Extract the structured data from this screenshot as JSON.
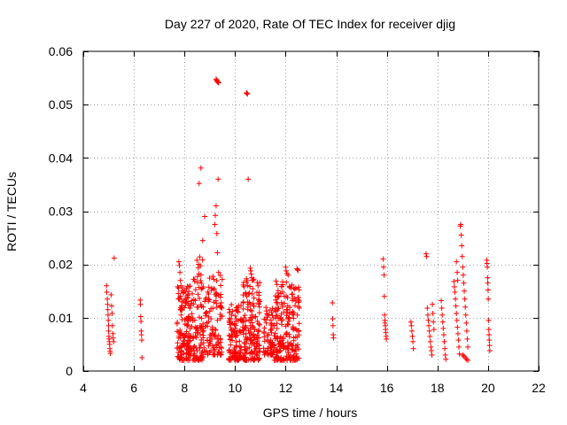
{
  "chart_data": {
    "type": "scatter",
    "title": "Day 227 of 2020, Rate Of TEC Index for receiver djig",
    "xlabel": "GPS time / hours",
    "ylabel": "ROTI / TECUs",
    "xlim": [
      4,
      22
    ],
    "ylim": [
      0,
      0.06
    ],
    "xticks": [
      4,
      6,
      8,
      10,
      12,
      14,
      16,
      18,
      20,
      22
    ],
    "xtick_labels": [
      "4",
      "6",
      "8",
      "10",
      "12",
      "14",
      "16",
      "18",
      "20",
      "22"
    ],
    "yticks": [
      0,
      0.01,
      0.02,
      0.03,
      0.04,
      0.05,
      0.06
    ],
    "ytick_labels": [
      "0",
      "0.01",
      "0.02",
      "0.03",
      "0.04",
      "0.05",
      "0.06"
    ],
    "grid": true,
    "marker": "plus",
    "color": "#ff0000",
    "series": [
      {
        "name": "ROTI",
        "points": [
          [
            4.92,
            0.016
          ],
          [
            4.93,
            0.0148
          ],
          [
            4.95,
            0.0135
          ],
          [
            4.96,
            0.0125
          ],
          [
            4.97,
            0.0115
          ],
          [
            4.98,
            0.0105
          ],
          [
            4.99,
            0.0095
          ],
          [
            5.0,
            0.0085
          ],
          [
            5.0,
            0.0075
          ],
          [
            5.01,
            0.0065
          ],
          [
            5.02,
            0.006
          ],
          [
            5.03,
            0.0055
          ],
          [
            5.04,
            0.005
          ],
          [
            5.05,
            0.0042
          ],
          [
            5.06,
            0.0037
          ],
          [
            5.07,
            0.0033
          ],
          [
            5.1,
            0.0143
          ],
          [
            5.12,
            0.0122
          ],
          [
            5.14,
            0.0108
          ],
          [
            5.15,
            0.0085
          ],
          [
            5.17,
            0.007
          ],
          [
            5.18,
            0.0062
          ],
          [
            5.2,
            0.0055
          ],
          [
            5.22,
            0.0212
          ],
          [
            6.25,
            0.0133
          ],
          [
            6.26,
            0.0125
          ],
          [
            6.27,
            0.0102
          ],
          [
            6.28,
            0.0093
          ],
          [
            6.29,
            0.0075
          ],
          [
            6.3,
            0.0068
          ],
          [
            6.31,
            0.0058
          ],
          [
            6.32,
            0.0025
          ],
          [
            7.78,
            0.0205
          ],
          [
            7.8,
            0.0198
          ],
          [
            7.82,
            0.0185
          ],
          [
            7.84,
            0.017
          ],
          [
            7.86,
            0.016
          ],
          [
            8.58,
            0.0352
          ],
          [
            8.65,
            0.0381
          ],
          [
            8.72,
            0.0245
          ],
          [
            8.8,
            0.029
          ],
          [
            8.95,
            0.0135
          ],
          [
            9.0,
            0.0112
          ],
          [
            9.05,
            0.0098
          ],
          [
            9.1,
            0.0082
          ],
          [
            9.15,
            0.007
          ],
          [
            9.2,
            0.0275
          ],
          [
            9.22,
            0.0292
          ],
          [
            9.25,
            0.031
          ],
          [
            9.28,
            0.0258
          ],
          [
            9.3,
            0.0222
          ],
          [
            9.33,
            0.036
          ],
          [
            9.35,
            0.0185
          ],
          [
            9.25,
            0.0548
          ],
          [
            9.27,
            0.0546
          ],
          [
            9.29,
            0.0544
          ],
          [
            9.31,
            0.0543
          ],
          [
            9.33,
            0.0542
          ],
          [
            9.35,
            0.0541
          ],
          [
            10.45,
            0.0522
          ],
          [
            10.47,
            0.0521
          ],
          [
            10.49,
            0.052
          ],
          [
            10.52,
            0.036
          ],
          [
            10.6,
            0.0193
          ],
          [
            10.62,
            0.0188
          ],
          [
            10.64,
            0.0182
          ],
          [
            10.66,
            0.0175
          ],
          [
            10.68,
            0.017
          ],
          [
            12.0,
            0.0195
          ],
          [
            12.02,
            0.0188
          ],
          [
            12.05,
            0.0183
          ],
          [
            12.1,
            0.018
          ],
          [
            12.45,
            0.0192
          ],
          [
            12.47,
            0.019
          ],
          [
            12.49,
            0.0189
          ],
          [
            13.85,
            0.0128
          ],
          [
            13.86,
            0.0098
          ],
          [
            13.87,
            0.0085
          ],
          [
            13.88,
            0.0068
          ],
          [
            13.89,
            0.0062
          ],
          [
            15.85,
            0.021
          ],
          [
            15.87,
            0.0195
          ],
          [
            15.89,
            0.018
          ],
          [
            15.9,
            0.014
          ],
          [
            15.91,
            0.0105
          ],
          [
            15.92,
            0.0095
          ],
          [
            15.93,
            0.009
          ],
          [
            15.94,
            0.0085
          ],
          [
            15.95,
            0.0078
          ],
          [
            15.96,
            0.0072
          ],
          [
            15.97,
            0.0065
          ],
          [
            15.98,
            0.006
          ],
          [
            16.95,
            0.0092
          ],
          [
            16.97,
            0.0085
          ],
          [
            16.99,
            0.0075
          ],
          [
            17.01,
            0.0065
          ],
          [
            17.03,
            0.0055
          ],
          [
            17.05,
            0.0042
          ],
          [
            17.55,
            0.022
          ],
          [
            17.57,
            0.0215
          ],
          [
            17.6,
            0.0118
          ],
          [
            17.62,
            0.0105
          ],
          [
            17.64,
            0.0095
          ],
          [
            17.66,
            0.0085
          ],
          [
            17.68,
            0.0075
          ],
          [
            17.7,
            0.0065
          ],
          [
            17.72,
            0.0055
          ],
          [
            17.74,
            0.0045
          ],
          [
            17.76,
            0.0038
          ],
          [
            17.78,
            0.003
          ],
          [
            17.8,
            0.0125
          ],
          [
            17.82,
            0.0108
          ],
          [
            17.84,
            0.0092
          ],
          [
            17.86,
            0.0078
          ],
          [
            18.15,
            0.0132
          ],
          [
            18.17,
            0.0118
          ],
          [
            18.19,
            0.0105
          ],
          [
            18.21,
            0.0092
          ],
          [
            18.23,
            0.008
          ],
          [
            18.25,
            0.0068
          ],
          [
            18.27,
            0.0055
          ],
          [
            18.29,
            0.0042
          ],
          [
            18.31,
            0.003
          ],
          [
            18.33,
            0.0022
          ],
          [
            18.65,
            0.0168
          ],
          [
            18.67,
            0.0158
          ],
          [
            18.69,
            0.0148
          ],
          [
            18.71,
            0.0135
          ],
          [
            18.73,
            0.0122
          ],
          [
            18.75,
            0.0108
          ],
          [
            18.77,
            0.0095
          ],
          [
            18.79,
            0.0082
          ],
          [
            18.81,
            0.007
          ],
          [
            18.83,
            0.0058
          ],
          [
            18.85,
            0.0045
          ],
          [
            18.87,
            0.0032
          ],
          [
            18.75,
            0.0205
          ],
          [
            18.78,
            0.0185
          ],
          [
            18.8,
            0.017
          ],
          [
            18.9,
            0.0272
          ],
          [
            18.92,
            0.0275
          ],
          [
            18.94,
            0.0255
          ],
          [
            18.96,
            0.0235
          ],
          [
            18.98,
            0.0215
          ],
          [
            19.0,
            0.0195
          ],
          [
            19.02,
            0.018
          ],
          [
            19.04,
            0.0165
          ],
          [
            19.06,
            0.015
          ],
          [
            19.08,
            0.0135
          ],
          [
            19.1,
            0.012
          ],
          [
            19.12,
            0.0105
          ],
          [
            19.14,
            0.009
          ],
          [
            19.16,
            0.0075
          ],
          [
            19.18,
            0.006
          ],
          [
            19.2,
            0.0045
          ],
          [
            19.0,
            0.003
          ],
          [
            19.05,
            0.0028
          ],
          [
            19.1,
            0.0025
          ],
          [
            19.15,
            0.0022
          ],
          [
            19.2,
            0.002
          ],
          [
            19.95,
            0.0208
          ],
          [
            19.96,
            0.0202
          ],
          [
            19.97,
            0.0195
          ],
          [
            19.98,
            0.0175
          ],
          [
            19.99,
            0.0165
          ],
          [
            20.0,
            0.0152
          ],
          [
            20.01,
            0.0135
          ],
          [
            20.02,
            0.0095
          ],
          [
            20.03,
            0.0078
          ],
          [
            20.04,
            0.0068
          ],
          [
            20.05,
            0.0058
          ],
          [
            20.06,
            0.0048
          ],
          [
            20.07,
            0.0038
          ]
        ]
      }
    ],
    "dense_clusters": [
      {
        "x_range": [
          7.7,
          8.35
        ],
        "y_range": [
          0.002,
          0.016
        ],
        "count": 160
      },
      {
        "x_range": [
          8.35,
          8.75
        ],
        "y_range": [
          0.002,
          0.022
        ],
        "count": 90
      },
      {
        "x_range": [
          8.75,
          9.5
        ],
        "y_range": [
          0.003,
          0.018
        ],
        "count": 110
      },
      {
        "x_range": [
          9.75,
          10.25
        ],
        "y_range": [
          0.002,
          0.013
        ],
        "count": 110
      },
      {
        "x_range": [
          10.3,
          11.0
        ],
        "y_range": [
          0.002,
          0.018
        ],
        "count": 170
      },
      {
        "x_range": [
          11.1,
          11.55
        ],
        "y_range": [
          0.003,
          0.012
        ],
        "count": 70
      },
      {
        "x_range": [
          11.55,
          11.95
        ],
        "y_range": [
          0.002,
          0.017
        ],
        "count": 100
      },
      {
        "x_range": [
          12.0,
          12.55
        ],
        "y_range": [
          0.002,
          0.017
        ],
        "count": 110
      }
    ]
  }
}
